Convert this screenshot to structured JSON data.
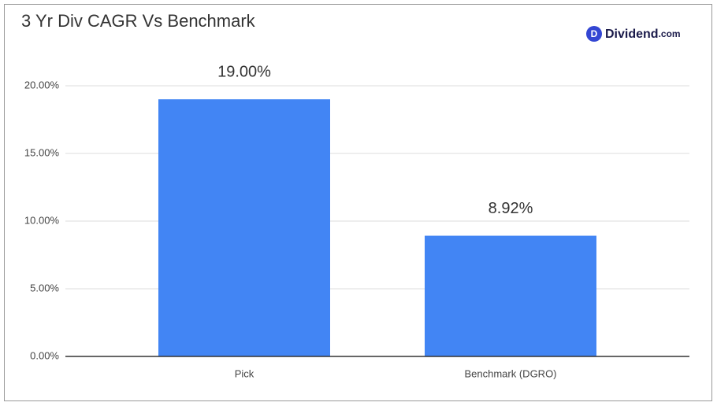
{
  "chart_data": {
    "type": "bar",
    "title": "3 Yr Div CAGR Vs Benchmark",
    "categories": [
      "Pick",
      "Benchmark (DGRO)"
    ],
    "values": [
      19,
      8.92
    ],
    "value_labels": [
      "19.00%",
      "8.92%"
    ],
    "color": "#4285f4",
    "ylim": [
      0,
      20
    ],
    "yticks": [
      {
        "value": 0,
        "label": "0.00%"
      },
      {
        "value": 5,
        "label": "5.00%"
      },
      {
        "value": 10,
        "label": "10.00%"
      },
      {
        "value": 15,
        "label": "15.00%"
      },
      {
        "value": 20,
        "label": "20.00%"
      }
    ],
    "grid": true
  },
  "logo": {
    "icon": "D",
    "name": "Dividend",
    "suffix": ".com"
  }
}
